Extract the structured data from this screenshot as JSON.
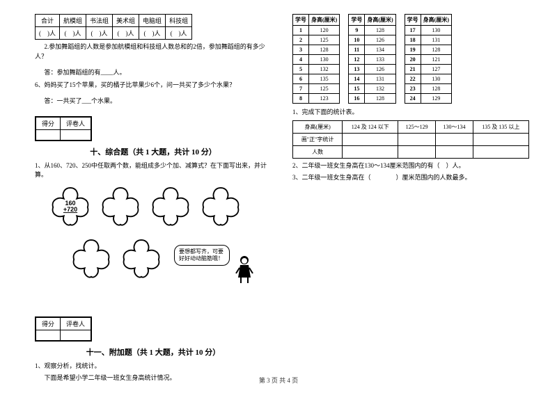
{
  "left": {
    "groupsTable": {
      "headers": [
        "合计",
        "航模组",
        "书法组",
        "美术组",
        "电脑组",
        "科技组"
      ],
      "row": [
        "(　)人",
        "(　)人",
        "(　)人",
        "(　)人",
        "(　)人",
        "(　)人"
      ]
    },
    "q2": "2.参加舞蹈组的人数是参加航模组和科技组人数总和的2倍，参加舞蹈组的有多少人？",
    "q2ans": "答：参加舞蹈组的有____人。",
    "q6": "6、妈妈买了15个苹果，买的橘子比苹果少6个，问一共买了多少个水果？",
    "q6ans": "答：一共买了___个水果。",
    "scoreLabels": [
      "得分",
      "评卷人"
    ],
    "section10": "十、综合题（共 1 大题，共计 10 分）",
    "comp1": "1、从160、720、250中任取两个数，能组成多少个加、减算式？在下面写出来，并计算。",
    "flowerExpr1": "160",
    "flowerExpr2": "+720",
    "speech": "要想都写齐，可要好好动动脑筋哦！",
    "section11": "十一、附加题（共 1 大题，共计 10 分）",
    "add1a": "1、观察分析，找统计。",
    "add1b": "下面是希望小学二年级一班女生身高统计情况。"
  },
  "right": {
    "statHeaders": [
      "学号",
      "身高(厘米)"
    ],
    "rows1": [
      [
        "1",
        "120"
      ],
      [
        "2",
        "125"
      ],
      [
        "3",
        "128"
      ],
      [
        "4",
        "130"
      ],
      [
        "5",
        "132"
      ],
      [
        "6",
        "135"
      ],
      [
        "7",
        "125"
      ],
      [
        "8",
        "123"
      ]
    ],
    "rows2": [
      [
        "9",
        "128"
      ],
      [
        "10",
        "126"
      ],
      [
        "11",
        "134"
      ],
      [
        "12",
        "133"
      ],
      [
        "13",
        "126"
      ],
      [
        "14",
        "131"
      ],
      [
        "15",
        "132"
      ],
      [
        "16",
        "128"
      ]
    ],
    "rows3": [
      [
        "17",
        "130"
      ],
      [
        "18",
        "131"
      ],
      [
        "19",
        "128"
      ],
      [
        "20",
        "121"
      ],
      [
        "21",
        "127"
      ],
      [
        "22",
        "130"
      ],
      [
        "23",
        "128"
      ],
      [
        "24",
        "129"
      ]
    ],
    "r1": "1、完成下面的统计表。",
    "resultHeaders": [
      "身高(厘米)",
      "124 及 124 以下",
      "125～129",
      "130～134",
      "135 及 135 以上"
    ],
    "resultRows": [
      "画\"正\"字统计",
      "人数"
    ],
    "r2": "2、二年级一班女生身高在130～134厘米范围内的有（　）人。",
    "r3": "3、二年级一班女生身高在（　　　　）厘米范围内的人数最多。"
  },
  "footer": "第 3 页 共 4 页"
}
